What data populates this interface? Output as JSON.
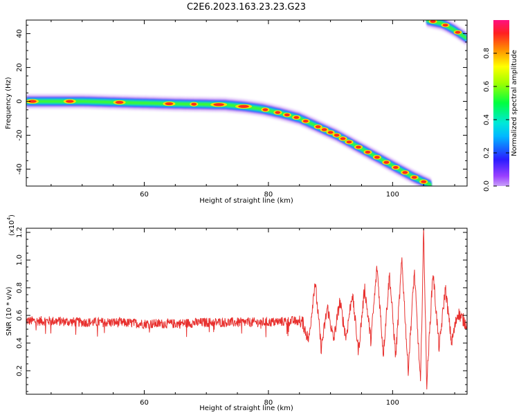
{
  "title": "C2E6.2023.163.23.23.G23",
  "colorbar": {
    "label": "Normalized spectral amplitude",
    "ticks": [
      "0.0",
      "0.2",
      "0.4",
      "0.6",
      "0.8"
    ],
    "tick_values": [
      0.0,
      0.2,
      0.4,
      0.6,
      0.8
    ],
    "range": [
      0,
      1
    ],
    "colormap": "hsv-like (magenta/purple -> blue -> cyan -> green -> yellow -> red)"
  },
  "chart_data": [
    {
      "type": "heatmap",
      "panel": "spectrogram",
      "xlabel": "Height of straight line (km)",
      "ylabel": "Frequency (Hz)",
      "xlim": [
        41,
        112
      ],
      "ylim": [
        -50,
        48
      ],
      "xticks": [
        60,
        80,
        100
      ],
      "yticks": [
        40,
        20,
        0,
        -20,
        -40
      ],
      "ridge": {
        "x": [
          41,
          45,
          50,
          55,
          60,
          65,
          70,
          73,
          76,
          79,
          82,
          85,
          88,
          91,
          94,
          97,
          100,
          103,
          106.5
        ],
        "y": [
          0,
          0,
          0,
          -0.5,
          -1,
          -1.5,
          -1.8,
          -2,
          -3,
          -4.5,
          -7,
          -10,
          -15,
          -20,
          -26,
          -32,
          -38,
          -44,
          -50
        ]
      },
      "upper_ridge": {
        "x": [
          105.5,
          108,
          110,
          112
        ],
        "y": [
          48,
          46,
          42,
          37
        ]
      }
    },
    {
      "type": "line",
      "panel": "snr",
      "xlabel": "Height of straight line (km)",
      "ylabel": "SNR (10 * v/v)",
      "yscale_label": "(x10",
      "yscale_exp": "4",
      "xlim": [
        41,
        112
      ],
      "ylim": [
        0.03,
        1.23
      ],
      "xticks": [
        60,
        80,
        100
      ],
      "yticks": [
        0.2,
        0.4,
        0.6,
        0.8,
        1.0,
        1.2
      ],
      "ytick_labels": [
        "0.2",
        "0.4",
        "0.6",
        "0.8",
        "1.0",
        "1.2"
      ],
      "color": "#e8302e",
      "series": [
        {
          "x": [
            41,
            45,
            50,
            55,
            60,
            65,
            70,
            75,
            80,
            84,
            85.5,
            86.5,
            87.5,
            88.5,
            89.5,
            90.5,
            91.5,
            92.5,
            93.5,
            94.5,
            95.5,
            96.5,
            97.5,
            98.5,
            99.5,
            100.5,
            101.5,
            102.5,
            103.5,
            104.5,
            105.0,
            105.5,
            106.5,
            107.5,
            108.5,
            109.5,
            110.5,
            112
          ],
          "y": [
            0.56,
            0.56,
            0.55,
            0.55,
            0.54,
            0.54,
            0.55,
            0.55,
            0.55,
            0.56,
            0.55,
            0.42,
            0.85,
            0.36,
            0.66,
            0.42,
            0.7,
            0.44,
            0.76,
            0.34,
            0.8,
            0.42,
            0.95,
            0.32,
            0.9,
            0.3,
            1.0,
            0.2,
            0.92,
            0.1,
            1.22,
            0.1,
            0.92,
            0.36,
            0.8,
            0.4,
            0.62,
            0.53
          ]
        }
      ]
    }
  ]
}
